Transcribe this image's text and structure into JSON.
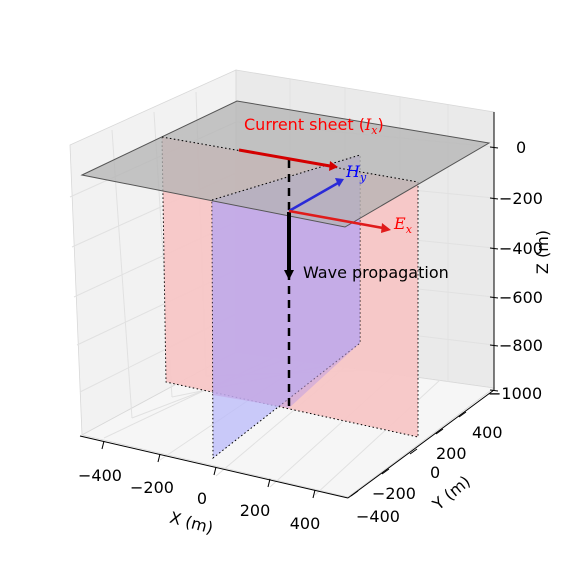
{
  "chart_data": {
    "type": "diagram-3d",
    "axes": {
      "x": {
        "label": "X (m)",
        "ticks": [
          "−400",
          "−200",
          "0",
          "200",
          "400"
        ]
      },
      "y": {
        "label": "Y (m)",
        "ticks": [
          "−400",
          "−200",
          "0",
          "200",
          "400"
        ]
      },
      "z": {
        "label": "Z (m)",
        "ticks": [
          "0",
          "−200",
          "−400",
          "−600",
          "−800",
          "−1000"
        ]
      }
    },
    "annotations": {
      "current_sheet": {
        "text": "Current sheet (",
        "sym": "I",
        "sub": "x",
        "close": ")",
        "color": "#ff0000"
      },
      "h_field": {
        "sym": "H",
        "sub": "y",
        "color": "#0000ff"
      },
      "e_field": {
        "sym": "E",
        "sub": "x",
        "color": "#ff0000"
      },
      "wave": {
        "text": "Wave propagation",
        "color": "#000000"
      }
    },
    "colors": {
      "sheet_fill": "#bfbfbf",
      "xz_plane_fill": "#f7c6c6",
      "yz_plane_fill": "#b9b9f9",
      "overlap_fill": "#c49ee0",
      "pane_fill": "#f2f2f2",
      "grid": "#e3e3e3"
    }
  }
}
